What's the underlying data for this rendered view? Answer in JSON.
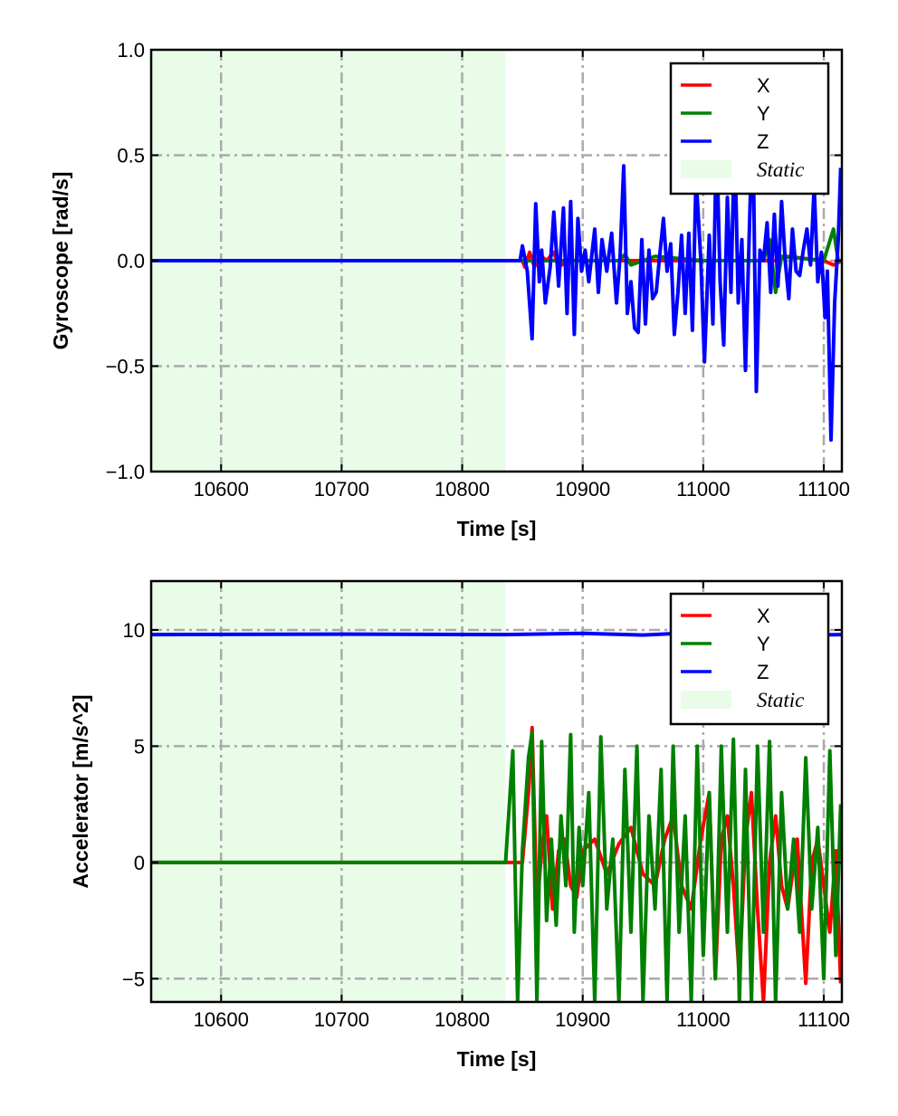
{
  "chart_data": [
    {
      "type": "line",
      "xlabel": "Time [s]",
      "ylabel": "Gyroscope [rad/s]",
      "xlim": [
        10542,
        11115
      ],
      "ylim": [
        -1.0,
        1.0
      ],
      "xticks": [
        10600,
        10700,
        10800,
        10900,
        11000,
        11100
      ],
      "xtick_labels": [
        "10600",
        "10700",
        "10800",
        "10900",
        "11000",
        "11100"
      ],
      "yticks": [
        1.0,
        0.5,
        0.0,
        -0.5,
        -1.0
      ],
      "ytick_labels": [
        "1.0",
        "0.5",
        "0.0",
        "−0.5",
        "−1.0"
      ],
      "grid": true,
      "legend_position": "top-right",
      "static_region": [
        10542,
        10836
      ],
      "legend": [
        "X",
        "Y",
        "Z",
        "Static"
      ],
      "series": [
        {
          "name": "X",
          "color": "#ff0000",
          "points": [
            [
              10542,
              0
            ],
            [
              10850,
              0
            ],
            [
              10852,
              -0.03
            ],
            [
              10856,
              0.04
            ],
            [
              10860,
              -0.03
            ],
            [
              10864,
              0.03
            ],
            [
              10870,
              0
            ],
            [
              10876,
              0.04
            ],
            [
              10880,
              -0.03
            ],
            [
              10888,
              0
            ],
            [
              10900,
              0
            ],
            [
              11000,
              0
            ],
            [
              11060,
              0
            ],
            [
              11070,
              0.02
            ],
            [
              11100,
              0
            ],
            [
              11108,
              -0.02
            ],
            [
              11115,
              0
            ]
          ]
        },
        {
          "name": "Y",
          "color": "#008000",
          "points": [
            [
              10542,
              0
            ],
            [
              10900,
              0
            ],
            [
              10930,
              0
            ],
            [
              10935,
              0.03
            ],
            [
              10940,
              -0.02
            ],
            [
              10960,
              0.02
            ],
            [
              11000,
              0
            ],
            [
              11050,
              0
            ],
            [
              11055,
              0.1
            ],
            [
              11060,
              -0.15
            ],
            [
              11065,
              0.02
            ],
            [
              11100,
              0
            ],
            [
              11108,
              0.15
            ],
            [
              11112,
              0
            ],
            [
              11115,
              0
            ]
          ]
        },
        {
          "name": "Z",
          "color": "#0000ff",
          "points": [
            [
              10542,
              0
            ],
            [
              10848,
              0
            ],
            [
              10850,
              0.07
            ],
            [
              10854,
              -0.05
            ],
            [
              10858,
              -0.37
            ],
            [
              10861,
              0.27
            ],
            [
              10864,
              -0.1
            ],
            [
              10866,
              0.05
            ],
            [
              10869,
              -0.2
            ],
            [
              10873,
              -0.03
            ],
            [
              10876,
              0.23
            ],
            [
              10880,
              -0.12
            ],
            [
              10884,
              0.25
            ],
            [
              10887,
              -0.25
            ],
            [
              10890,
              0.28
            ],
            [
              10893,
              -0.35
            ],
            [
              10896,
              0.2
            ],
            [
              10899,
              -0.05
            ],
            [
              10902,
              0.05
            ],
            [
              10905,
              -0.1
            ],
            [
              10910,
              0.15
            ],
            [
              10913,
              -0.15
            ],
            [
              10916,
              0.1
            ],
            [
              10920,
              -0.05
            ],
            [
              10924,
              0.13
            ],
            [
              10928,
              -0.2
            ],
            [
              10931,
              0.02
            ],
            [
              10934,
              0.45
            ],
            [
              10937,
              -0.25
            ],
            [
              10940,
              -0.1
            ],
            [
              10943,
              -0.32
            ],
            [
              10946,
              -0.34
            ],
            [
              10949,
              0.1
            ],
            [
              10952,
              -0.3
            ],
            [
              10955,
              0.05
            ],
            [
              10958,
              -0.18
            ],
            [
              10961,
              -0.15
            ],
            [
              10964,
              0.03
            ],
            [
              10967,
              0.2
            ],
            [
              10970,
              -0.05
            ],
            [
              10973,
              0.08
            ],
            [
              10976,
              -0.35
            ],
            [
              10979,
              -0.15
            ],
            [
              10982,
              0.12
            ],
            [
              10985,
              -0.25
            ],
            [
              10988,
              0.13
            ],
            [
              10991,
              -0.33
            ],
            [
              10994,
              0.4
            ],
            [
              10998,
              0.0
            ],
            [
              11001,
              -0.48
            ],
            [
              11005,
              0.12
            ],
            [
              11008,
              -0.3
            ],
            [
              11011,
              0.6
            ],
            [
              11014,
              -0.1
            ],
            [
              11017,
              -0.4
            ],
            [
              11020,
              0.3
            ],
            [
              11023,
              -0.15
            ],
            [
              11026,
              0.6
            ],
            [
              11029,
              -0.2
            ],
            [
              11032,
              0.1
            ],
            [
              11035,
              -0.52
            ],
            [
              11038,
              0.1
            ],
            [
              11041,
              0.7
            ],
            [
              11044,
              -0.62
            ],
            [
              11047,
              0.05
            ],
            [
              11050,
              0.0
            ],
            [
              11053,
              0.18
            ],
            [
              11056,
              -0.15
            ],
            [
              11059,
              0.22
            ],
            [
              11062,
              -0.12
            ],
            [
              11065,
              0.28
            ],
            [
              11068,
              0.0
            ],
            [
              11071,
              -0.18
            ],
            [
              11074,
              0.15
            ],
            [
              11077,
              -0.05
            ],
            [
              11080,
              -0.07
            ],
            [
              11083,
              0.05
            ],
            [
              11086,
              0.15
            ],
            [
              11089,
              -0.02
            ],
            [
              11092,
              0.35
            ],
            [
              11095,
              -0.1
            ],
            [
              11098,
              0.04
            ],
            [
              11101,
              -0.27
            ],
            [
              11103,
              -0.05
            ],
            [
              11106,
              -0.85
            ],
            [
              11109,
              -0.2
            ],
            [
              11112,
              0.1
            ],
            [
              11114,
              0.44
            ]
          ]
        }
      ]
    },
    {
      "type": "line",
      "xlabel": "Time [s]",
      "ylabel": "Accelerator [m/s^2]",
      "xlim": [
        10542,
        11115
      ],
      "ylim": [
        -6.0,
        12.1
      ],
      "xticks": [
        10600,
        10700,
        10800,
        10900,
        11000,
        11100
      ],
      "xtick_labels": [
        "10600",
        "10700",
        "10800",
        "10900",
        "11000",
        "11100"
      ],
      "yticks": [
        10,
        5,
        0,
        -5
      ],
      "ytick_labels": [
        "10",
        "5",
        "0",
        "−5"
      ],
      "grid": true,
      "legend_position": "top-right",
      "static_region": [
        10542,
        10836
      ],
      "legend": [
        "X",
        "Y",
        "Z",
        "Static"
      ],
      "series": [
        {
          "name": "X",
          "color": "#ff0000",
          "points": [
            [
              10542,
              0
            ],
            [
              10840,
              0
            ],
            [
              10850,
              0
            ],
            [
              10855,
              3
            ],
            [
              10858,
              5.8
            ],
            [
              10862,
              -2
            ],
            [
              10866,
              0.5
            ],
            [
              10870,
              2
            ],
            [
              10875,
              -2
            ],
            [
              10880,
              0.5
            ],
            [
              10885,
              1
            ],
            [
              10890,
              -1
            ],
            [
              10895,
              -1.5
            ],
            [
              10900,
              0.5
            ],
            [
              10910,
              1
            ],
            [
              10920,
              -0.5
            ],
            [
              10930,
              0.8
            ],
            [
              10940,
              1.5
            ],
            [
              10950,
              -0.5
            ],
            [
              10960,
              -1
            ],
            [
              10968,
              1
            ],
            [
              10975,
              2
            ],
            [
              10982,
              -1
            ],
            [
              10990,
              -2
            ],
            [
              10998,
              1
            ],
            [
              11005,
              3
            ],
            [
              11010,
              -5
            ],
            [
              11015,
              1
            ],
            [
              11020,
              2
            ],
            [
              11025,
              -1
            ],
            [
              11030,
              -5
            ],
            [
              11035,
              1
            ],
            [
              11040,
              3
            ],
            [
              11045,
              -2
            ],
            [
              11050,
              -6
            ],
            [
              11055,
              0
            ],
            [
              11060,
              2
            ],
            [
              11065,
              -1
            ],
            [
              11070,
              -2
            ],
            [
              11078,
              1
            ],
            [
              11085,
              -5.2
            ],
            [
              11090,
              0
            ],
            [
              11095,
              1
            ],
            [
              11100,
              -1
            ],
            [
              11105,
              -3
            ],
            [
              11110,
              0.5
            ],
            [
              11114,
              -5.2
            ]
          ]
        },
        {
          "name": "Y",
          "color": "#008000",
          "points": [
            [
              10542,
              0
            ],
            [
              10836,
              0
            ],
            [
              10842,
              4.8
            ],
            [
              10846,
              -6
            ],
            [
              10850,
              0.5
            ],
            [
              10855,
              4.5
            ],
            [
              10858,
              5.6
            ],
            [
              10862,
              -6
            ],
            [
              10866,
              5.2
            ],
            [
              10870,
              -2.5
            ],
            [
              10874,
              1
            ],
            [
              10878,
              -2.7
            ],
            [
              10882,
              2
            ],
            [
              10886,
              -1
            ],
            [
              10890,
              5.5
            ],
            [
              10893,
              -3
            ],
            [
              10897,
              1.5
            ],
            [
              10900,
              -1
            ],
            [
              10905,
              3
            ],
            [
              10910,
              -6
            ],
            [
              10915,
              5.4
            ],
            [
              10920,
              -2
            ],
            [
              10925,
              1
            ],
            [
              10930,
              -6
            ],
            [
              10935,
              4
            ],
            [
              10940,
              -3
            ],
            [
              10945,
              5
            ],
            [
              10950,
              -6
            ],
            [
              10955,
              2
            ],
            [
              10960,
              -2
            ],
            [
              10965,
              4
            ],
            [
              10970,
              -6
            ],
            [
              10975,
              5
            ],
            [
              10980,
              -3
            ],
            [
              10985,
              2
            ],
            [
              10990,
              -6
            ],
            [
              10995,
              5
            ],
            [
              11000,
              -4
            ],
            [
              11005,
              3
            ],
            [
              11010,
              -5
            ],
            [
              11015,
              5
            ],
            [
              11020,
              -3
            ],
            [
              11025,
              5.3
            ],
            [
              11030,
              -6
            ],
            [
              11035,
              4
            ],
            [
              11040,
              -6
            ],
            [
              11045,
              5
            ],
            [
              11050,
              -3
            ],
            [
              11055,
              5.2
            ],
            [
              11060,
              -6
            ],
            [
              11065,
              3
            ],
            [
              11070,
              -2
            ],
            [
              11075,
              1
            ],
            [
              11080,
              -3
            ],
            [
              11085,
              4.5
            ],
            [
              11090,
              -2
            ],
            [
              11095,
              1.5
            ],
            [
              11100,
              -5
            ],
            [
              11105,
              4.8
            ],
            [
              11110,
              -4
            ],
            [
              11114,
              2.5
            ]
          ]
        },
        {
          "name": "Z",
          "color": "#0000ff",
          "points": [
            [
              10542,
              9.8
            ],
            [
              10700,
              9.82
            ],
            [
              10836,
              9.8
            ],
            [
              10900,
              9.85
            ],
            [
              10950,
              9.78
            ],
            [
              11000,
              9.9
            ],
            [
              11050,
              9.75
            ],
            [
              11115,
              9.8
            ]
          ]
        }
      ]
    }
  ]
}
